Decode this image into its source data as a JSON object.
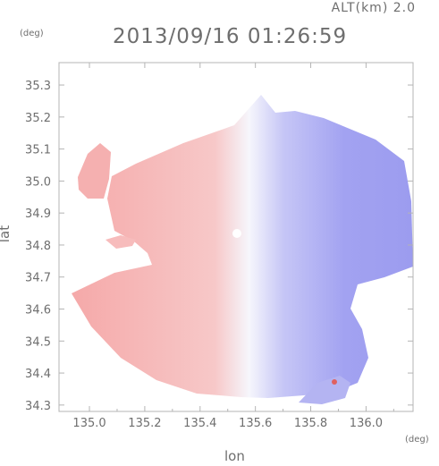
{
  "header": {
    "altitude_label": "ALT(km) 2.0",
    "timestamp": "2013/09/16 01:26:59"
  },
  "axes": {
    "y_unit": "(deg)",
    "x_unit": "(deg)",
    "y_title": "lat",
    "x_title": "lon",
    "x_ticks": [
      "135.0",
      "135.2",
      "135.4",
      "135.6",
      "135.8",
      "136.0"
    ],
    "y_ticks": [
      "35.3",
      "35.2",
      "35.1",
      "35.0",
      "34.9",
      "34.8",
      "34.7",
      "34.6",
      "34.5",
      "34.4",
      "34.3"
    ]
  },
  "map_data": {
    "type": "doppler-velocity-field",
    "radar_center": {
      "lon": 135.52,
      "lat": 34.8
    },
    "lon_range": [
      134.89,
      136.17
    ],
    "lat_range": [
      34.28,
      35.37
    ],
    "colors": {
      "approaching": "#f5b4b4",
      "receding": "#a4a4f2",
      "near_zero": "#f4f4fb",
      "frame": "#b4b4b4",
      "text": "#6e6e6e"
    }
  }
}
